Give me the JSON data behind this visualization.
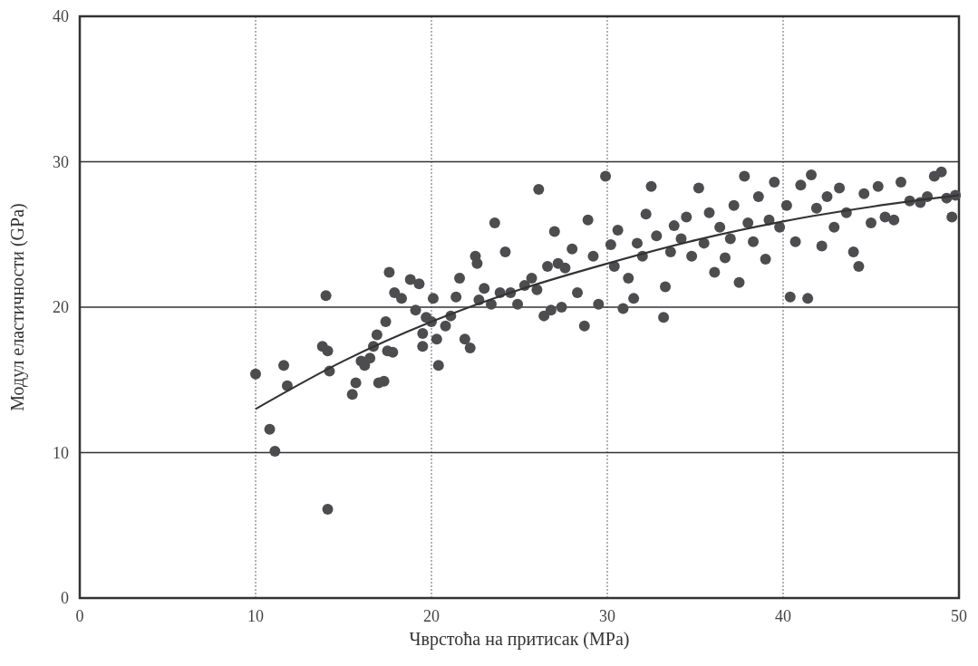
{
  "chart_data": {
    "type": "scatter",
    "xlabel": "Чврстоћа на притисак (MPa)",
    "ylabel": "Модул еластичности (GPa)",
    "xlim": [
      0,
      50
    ],
    "ylim": [
      0,
      40
    ],
    "xticks": [
      0,
      10,
      20,
      30,
      40,
      50
    ],
    "yticks": [
      0,
      10,
      20,
      30,
      40
    ],
    "grid": true,
    "series": [
      {
        "color": "#4d4d4f",
        "marker": "circle",
        "x": [
          10.0,
          10.8,
          11.1,
          11.6,
          11.8,
          14.1,
          14.0,
          13.8,
          14.1,
          14.2,
          15.5,
          15.7,
          16.0,
          16.2,
          16.5,
          16.7,
          16.9,
          17.0,
          17.3,
          17.5,
          17.8,
          17.4,
          17.6,
          17.9,
          18.3,
          18.8,
          19.1,
          19.3,
          19.5,
          19.7,
          19.5,
          20.0,
          20.1,
          20.3,
          20.4,
          20.8,
          21.1,
          21.4,
          21.6,
          21.9,
          22.2,
          22.5,
          22.6,
          22.7,
          23.0,
          23.4,
          23.6,
          23.9,
          24.2,
          24.5,
          24.9,
          25.3,
          25.7,
          26.0,
          26.1,
          26.4,
          26.8,
          26.6,
          27.0,
          27.2,
          27.4,
          27.6,
          28.0,
          28.3,
          28.7,
          28.9,
          29.2,
          29.5,
          29.9,
          30.2,
          30.4,
          30.6,
          30.9,
          31.2,
          31.5,
          31.7,
          32.0,
          32.2,
          32.5,
          32.8,
          33.2,
          33.3,
          33.6,
          33.8,
          34.2,
          34.5,
          34.8,
          35.2,
          35.5,
          35.8,
          36.1,
          36.4,
          36.7,
          37.0,
          37.2,
          37.5,
          37.8,
          38.0,
          38.3,
          38.6,
          39.0,
          39.2,
          39.5,
          39.8,
          40.2,
          40.4,
          40.7,
          41.0,
          41.4,
          41.6,
          41.9,
          42.2,
          42.5,
          42.9,
          43.2,
          43.6,
          44.0,
          44.3,
          44.6,
          45.0,
          45.4,
          45.8,
          46.3,
          46.7,
          47.2,
          47.8,
          48.2,
          48.6,
          49.0,
          49.3,
          49.6,
          49.8
        ],
        "values": [
          15.4,
          11.6,
          10.1,
          16.0,
          14.6,
          6.1,
          20.8,
          17.3,
          17.0,
          15.6,
          14.0,
          14.8,
          16.3,
          16.0,
          16.5,
          17.3,
          18.1,
          14.8,
          14.9,
          17.0,
          16.9,
          19.0,
          22.4,
          21.0,
          20.6,
          21.9,
          19.8,
          21.6,
          18.2,
          19.3,
          17.3,
          19.0,
          20.6,
          17.8,
          16.0,
          18.7,
          19.4,
          20.7,
          22.0,
          17.8,
          17.2,
          23.5,
          23.0,
          20.5,
          21.3,
          20.2,
          25.8,
          21.0,
          23.8,
          21.0,
          20.2,
          21.5,
          22.0,
          21.2,
          28.1,
          19.4,
          19.8,
          22.8,
          25.2,
          23.0,
          20.0,
          22.7,
          24.0,
          21.0,
          18.7,
          26.0,
          23.5,
          20.2,
          29.0,
          24.3,
          22.8,
          25.3,
          19.9,
          22.0,
          20.6,
          24.4,
          23.5,
          26.4,
          28.3,
          24.9,
          19.3,
          21.4,
          23.8,
          25.6,
          24.7,
          26.2,
          23.5,
          28.2,
          24.4,
          26.5,
          22.4,
          25.5,
          23.4,
          24.7,
          27.0,
          21.7,
          29.0,
          25.8,
          24.5,
          27.6,
          23.3,
          26.0,
          28.6,
          25.5,
          27.0,
          20.7,
          24.5,
          28.4,
          20.6,
          29.1,
          26.8,
          24.2,
          27.6,
          25.5,
          28.2,
          26.5,
          23.8,
          22.8,
          27.8,
          25.8,
          28.3,
          26.2,
          26.0,
          28.6,
          27.3,
          27.2,
          27.6,
          29.0,
          29.3,
          27.5,
          26.2,
          27.7
        ]
      },
      {
        "type": "line",
        "marker": "none",
        "color": "#333333",
        "x": [
          10,
          15,
          20,
          25,
          30,
          35,
          40,
          45,
          50
        ],
        "values": [
          13.0,
          16.3,
          19.0,
          21.2,
          23.0,
          24.6,
          25.9,
          26.9,
          27.7
        ]
      }
    ]
  }
}
